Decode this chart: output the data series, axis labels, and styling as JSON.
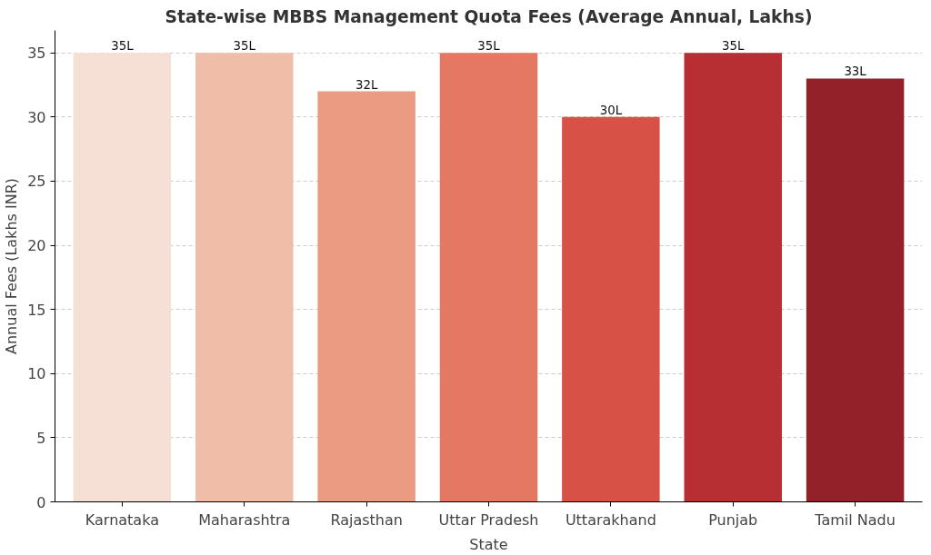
{
  "chart_data": {
    "type": "bar",
    "title": "State-wise MBBS Management Quota Fees (Average Annual, Lakhs)",
    "xlabel": "State",
    "ylabel": "Annual Fees (Lakhs INR)",
    "categories": [
      "Karnataka",
      "Maharashtra",
      "Rajasthan",
      "Uttar Pradesh",
      "Uttarakhand",
      "Punjab",
      "Tamil Nadu"
    ],
    "values": [
      35,
      35,
      32,
      35,
      30,
      35,
      33
    ],
    "value_labels": [
      "35L",
      "35L",
      "32L",
      "35L",
      "30L",
      "35L",
      "33L"
    ],
    "colors": [
      "#f6e0d6",
      "#f0bea8",
      "#eb9b82",
      "#e57862",
      "#d75246",
      "#b72e33",
      "#92212a"
    ],
    "ylim": [
      0,
      36.75
    ],
    "yticks": [
      0,
      5,
      10,
      15,
      20,
      25,
      30,
      35
    ],
    "grid": "y"
  }
}
